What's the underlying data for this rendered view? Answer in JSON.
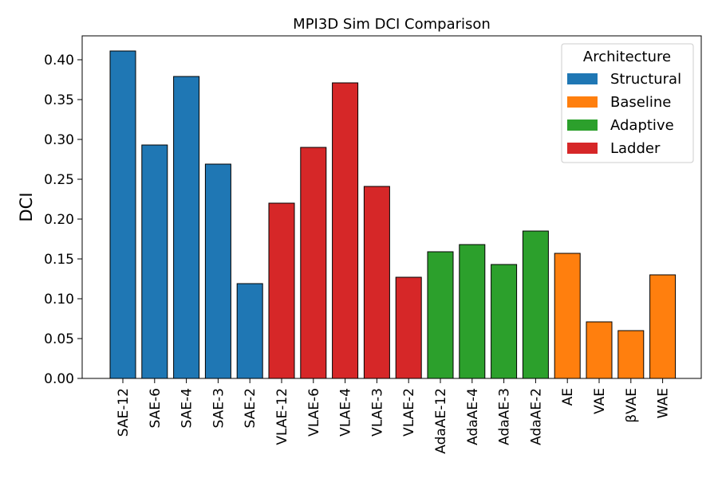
{
  "chart_data": {
    "type": "bar",
    "title": "MPI3D Sim DCI Comparison",
    "xlabel": "",
    "ylabel": "DCI",
    "ylim": [
      0,
      0.43
    ],
    "yticks": [
      "0.00",
      "0.05",
      "0.10",
      "0.15",
      "0.20",
      "0.25",
      "0.30",
      "0.35",
      "0.40"
    ],
    "categories": [
      "SAE-12",
      "SAE-6",
      "SAE-4",
      "SAE-3",
      "SAE-2",
      "VLAE-12",
      "VLAE-6",
      "VLAE-4",
      "VLAE-3",
      "VLAE-2",
      "AdaAE-12",
      "AdaAE-4",
      "AdaAE-3",
      "AdaAE-2",
      "AE",
      "VAE",
      "βVAE",
      "WAE"
    ],
    "values": [
      0.411,
      0.293,
      0.379,
      0.269,
      0.119,
      0.22,
      0.29,
      0.371,
      0.241,
      0.127,
      0.159,
      0.168,
      0.143,
      0.185,
      0.157,
      0.071,
      0.06,
      0.13
    ],
    "groups": [
      "Structural",
      "Structural",
      "Structural",
      "Structural",
      "Structural",
      "Ladder",
      "Ladder",
      "Ladder",
      "Ladder",
      "Ladder",
      "Adaptive",
      "Adaptive",
      "Adaptive",
      "Adaptive",
      "Baseline",
      "Baseline",
      "Baseline",
      "Baseline"
    ],
    "legend": {
      "title": "Architecture",
      "placement": "top-right",
      "entries": [
        {
          "name": "Structural",
          "color": "#1f77b4"
        },
        {
          "name": "Baseline",
          "color": "#ff7f0e"
        },
        {
          "name": "Adaptive",
          "color": "#2ca02c"
        },
        {
          "name": "Ladder",
          "color": "#d62728"
        }
      ]
    },
    "grid": false
  }
}
